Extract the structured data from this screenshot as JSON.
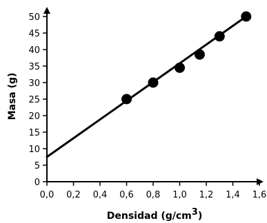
{
  "chart_data": {
    "type": "scatter",
    "title": "",
    "xlabel": "Densidad (g/cm",
    "xlabel_superscript": "3",
    "xlabel_suffix": ")",
    "ylabel": "Masa (g)",
    "xlim": [
      0,
      1.6
    ],
    "ylim": [
      0,
      50
    ],
    "x_ticks": [
      "0,0",
      "0,2",
      "0,4",
      "0,6",
      "0,8",
      "1,0",
      "1,2",
      "1,4",
      "1,6"
    ],
    "y_ticks": [
      "0",
      "5",
      "10",
      "15",
      "20",
      "25",
      "30",
      "35",
      "40",
      "45",
      "50"
    ],
    "x_tick_values": [
      0,
      0.2,
      0.4,
      0.6,
      0.8,
      1.0,
      1.2,
      1.4,
      1.6
    ],
    "y_tick_values": [
      0,
      5,
      10,
      15,
      20,
      25,
      30,
      35,
      40,
      45,
      50
    ],
    "grid": false,
    "legend": "none",
    "points": [
      {
        "x": 0.6,
        "y": 25
      },
      {
        "x": 0.8,
        "y": 30
      },
      {
        "x": 1.0,
        "y": 34.5
      },
      {
        "x": 1.15,
        "y": 38.5
      },
      {
        "x": 1.3,
        "y": 44
      },
      {
        "x": 1.5,
        "y": 50
      }
    ],
    "trendline": {
      "x": [
        0,
        1.5
      ],
      "y": [
        7.5,
        50
      ]
    },
    "marker_color": "#000000",
    "line_color": "#000000"
  }
}
